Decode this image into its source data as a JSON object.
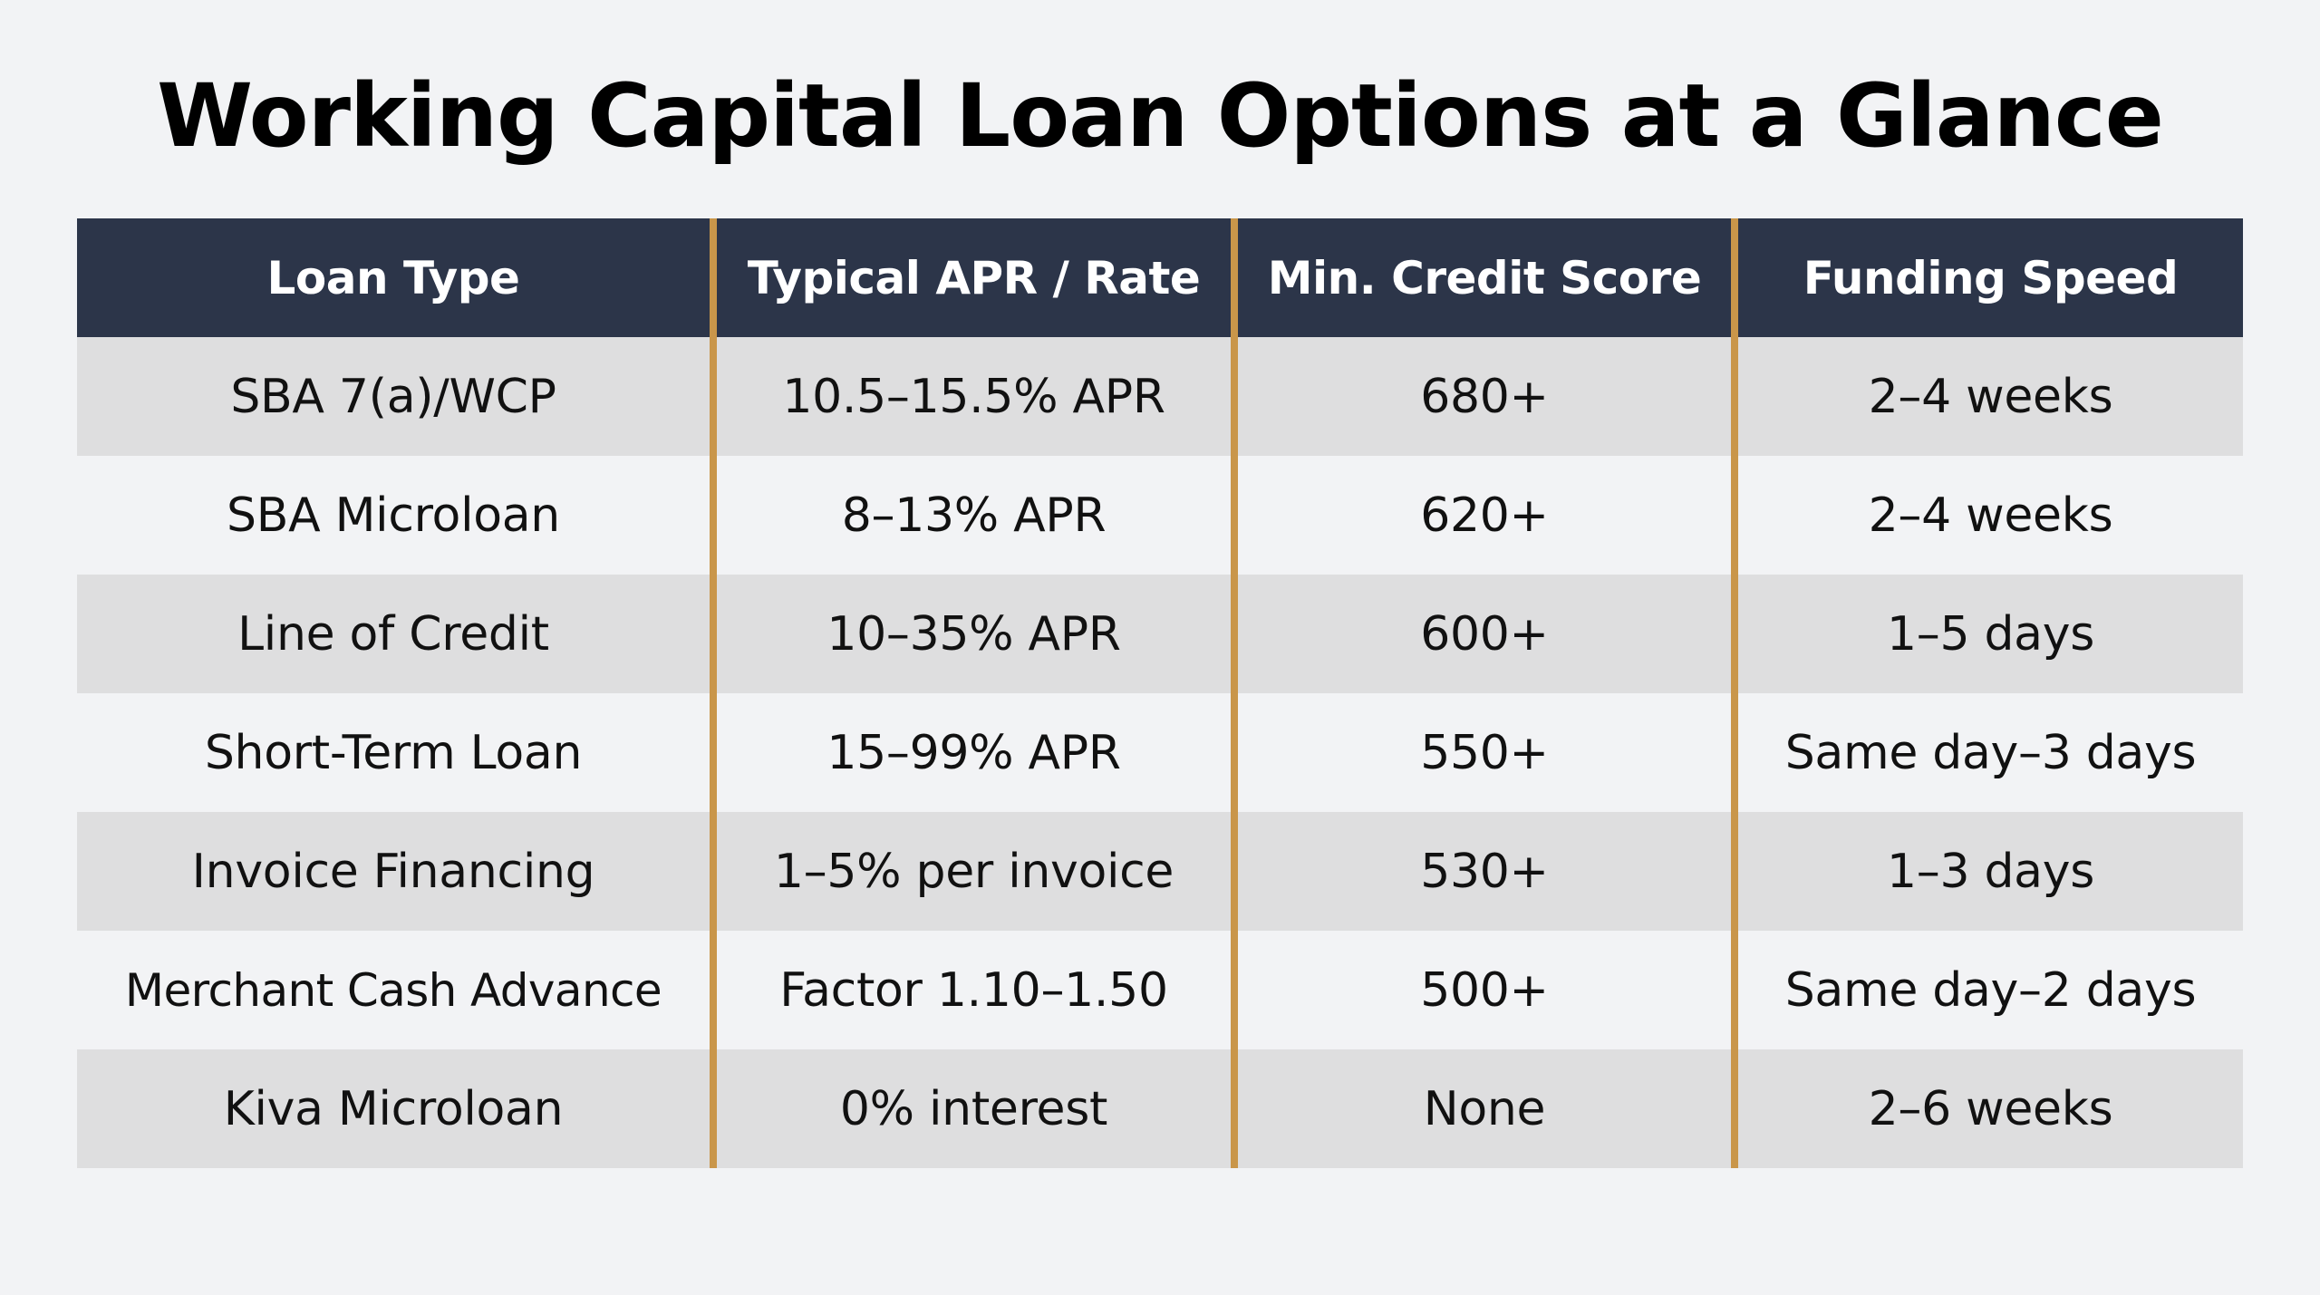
{
  "title": "Working Capital Loan Options at a Glance",
  "accent_color": "#c9964a",
  "header_color": "#2c3549",
  "table": {
    "columns": [
      "Loan Type",
      "Typical APR / Rate",
      "Min. Credit Score",
      "Funding Speed"
    ],
    "rows": [
      [
        "SBA 7(a)/WCP",
        "10.5–15.5% APR",
        "680+",
        "2–4 weeks"
      ],
      [
        "SBA Microloan",
        "8–13% APR",
        "620+",
        "2–4 weeks"
      ],
      [
        "Line of Credit",
        "10–35% APR",
        "600+",
        "1–5 days"
      ],
      [
        "Short-Term Loan",
        "15–99% APR",
        "550+",
        "Same day–3 days"
      ],
      [
        "Invoice Financing",
        "1–5% per invoice",
        "530+",
        "1–3 days"
      ],
      [
        "Merchant Cash Advance",
        "Factor 1.10–1.50",
        "500+",
        "Same day–2 days"
      ],
      [
        "Kiva Microloan",
        "0% interest",
        "None",
        "2–6 weeks"
      ]
    ]
  }
}
